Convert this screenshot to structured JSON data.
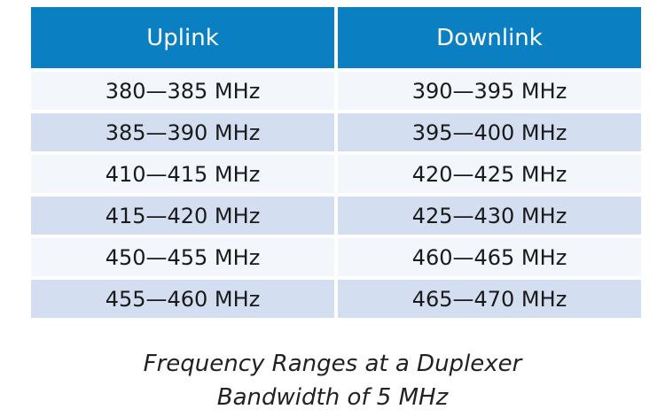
{
  "table": {
    "header": [
      "Uplink",
      "Downlink"
    ],
    "rows": [
      [
        "380—385 MHz",
        "390—395 MHz"
      ],
      [
        "385—390 MHz",
        "395—400 MHz"
      ],
      [
        "410—415 MHz",
        "420—425 MHz"
      ],
      [
        "415—420 MHz",
        "425—430 MHz"
      ],
      [
        "450—455 MHz",
        "460—465 MHz"
      ],
      [
        "455—460 MHz",
        "465—470 MHz"
      ]
    ]
  },
  "caption": [
    "Frequency Ranges at a Duplexer",
    "Bandwidth of 5 MHz"
  ]
}
